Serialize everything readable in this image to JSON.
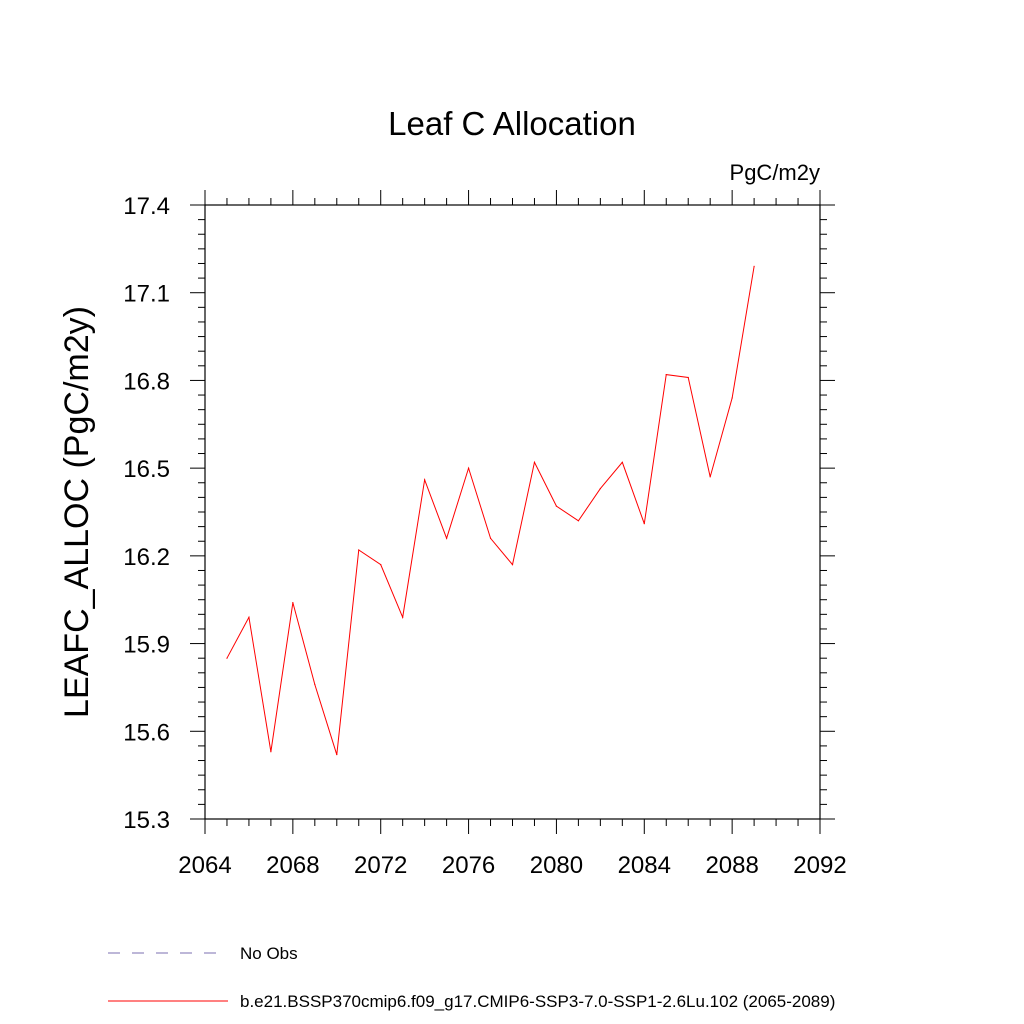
{
  "chart_data": {
    "type": "line",
    "title": "Leaf C Allocation",
    "units_label": "PgC/m2y",
    "ylabel": "LEAFC_ALLOC  (PgC/m2y)",
    "xlabel": "",
    "xlim": [
      2064,
      2092
    ],
    "ylim": [
      15.3,
      17.4
    ],
    "x_ticks": [
      "2064",
      "2068",
      "2072",
      "2076",
      "2080",
      "2084",
      "2088",
      "2092"
    ],
    "y_ticks": [
      "15.3",
      "15.6",
      "15.9",
      "16.2",
      "16.5",
      "16.8",
      "17.1",
      "17.4"
    ],
    "series": [
      {
        "name": "b.e21.BSSP370cmip6.f09_g17.CMIP6-SSP3-7.0-SSP1-2.6Lu.102 (2065-2089)",
        "color": "#ff0000",
        "x": [
          2065,
          2066,
          2067,
          2068,
          2069,
          2070,
          2071,
          2072,
          2073,
          2074,
          2075,
          2076,
          2077,
          2078,
          2079,
          2080,
          2081,
          2082,
          2083,
          2084,
          2085,
          2086,
          2087,
          2088,
          2089
        ],
        "y": [
          15.85,
          15.99,
          15.53,
          16.04,
          15.76,
          15.52,
          16.22,
          16.17,
          15.99,
          16.46,
          16.26,
          16.5,
          16.26,
          16.17,
          16.52,
          16.37,
          16.32,
          16.43,
          16.52,
          16.31,
          16.82,
          16.81,
          16.47,
          16.74,
          17.19
        ]
      }
    ],
    "legend": [
      {
        "label": "No Obs",
        "style": "dashed",
        "color": "#7b6fb0"
      },
      {
        "label": "b.e21.BSSP370cmip6.f09_g17.CMIP6-SSP3-7.0-SSP1-2.6Lu.102 (2065-2089)",
        "style": "solid",
        "color": "#ff0000"
      }
    ],
    "legend_placement": "bottom",
    "grid": false
  }
}
